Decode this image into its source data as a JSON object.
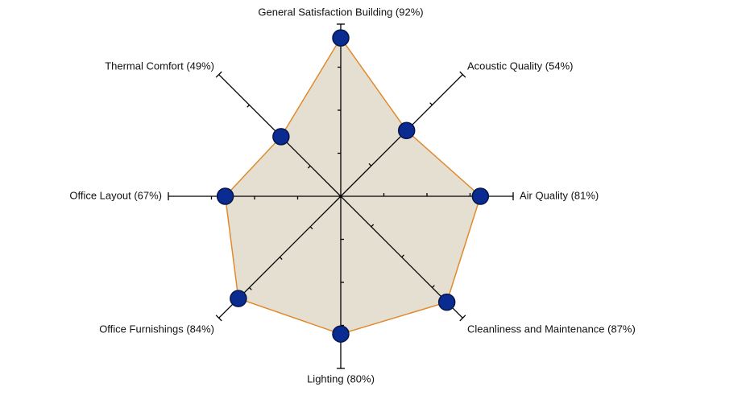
{
  "chart_data": {
    "type": "radar",
    "categories": [
      "General Satisfaction Building (92%)",
      "Acoustic Quality (54%)",
      "Air Quality (81%)",
      "Cleanliness and Maintenance (87%)",
      "Lighting (80%)",
      "Office Furnishings (84%)",
      "Office Layout (67%)",
      "Thermal Comfort (49%)"
    ],
    "values": [
      92,
      54,
      81,
      87,
      80,
      84,
      67,
      49
    ],
    "rlim": [
      0,
      100
    ],
    "rticks": [
      25,
      50,
      75,
      100
    ],
    "fill": "#e4dfd1",
    "line_color": "#e08a2c",
    "marker_color": "#0a2b8f"
  }
}
